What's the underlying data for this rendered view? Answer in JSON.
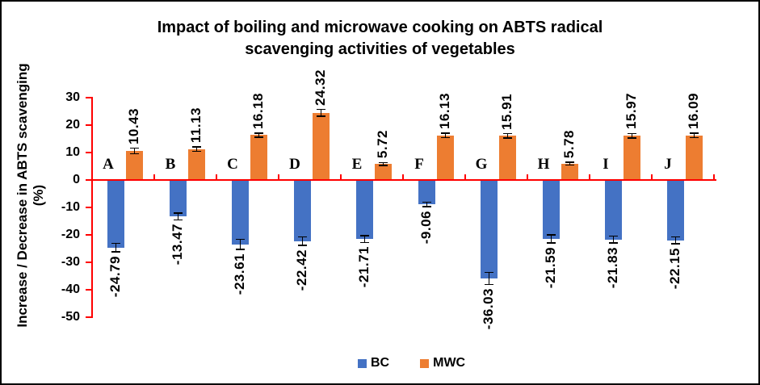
{
  "chart_data": {
    "type": "bar",
    "title": "Impact of boiling and microwave cooking on ABTS radical scavenging activities of vegetables",
    "title_lines": [
      "Impact of boiling and microwave cooking on ABTS radical",
      "scavenging activities of vegetables"
    ],
    "ylabel": "Increase / Decrease in ABTS scavenging (%)",
    "ylabel_lines": [
      "Increase / Decrease in ABTS scavenging",
      "(%)"
    ],
    "xlabel": "",
    "categories": [
      "A",
      "B",
      "C",
      "D",
      "E",
      "F",
      "G",
      "H",
      "I",
      "J"
    ],
    "series": [
      {
        "name": "BC",
        "color": "#4472C4",
        "values": [
          -24.79,
          -13.47,
          -23.61,
          -22.42,
          -21.71,
          -9.06,
          -36.03,
          -21.59,
          -21.83,
          -22.15
        ],
        "errors": [
          1.5,
          1.2,
          1.8,
          1.5,
          1.2,
          0.8,
          2.2,
          1.5,
          1.2,
          1.2
        ]
      },
      {
        "name": "MWC",
        "color": "#ED7D31",
        "values": [
          10.43,
          11.13,
          16.18,
          24.32,
          5.72,
          16.13,
          15.91,
          5.78,
          15.97,
          16.09
        ],
        "errors": [
          1.0,
          0.8,
          0.8,
          1.2,
          0.5,
          0.8,
          0.8,
          0.5,
          0.8,
          0.8
        ]
      }
    ],
    "y_ticks": [
      30,
      20,
      10,
      0,
      -10,
      -20,
      -30,
      -40,
      -50
    ],
    "ylim": [
      -50,
      30
    ],
    "grid": false,
    "legend_position": "bottom",
    "legend_labels": [
      "BC",
      "MWC"
    ],
    "axis_color": "#FF0000",
    "text_color": "#000000",
    "error_bar_color": "#000000",
    "data_labels_rotated_90": true,
    "error_bars": true
  }
}
